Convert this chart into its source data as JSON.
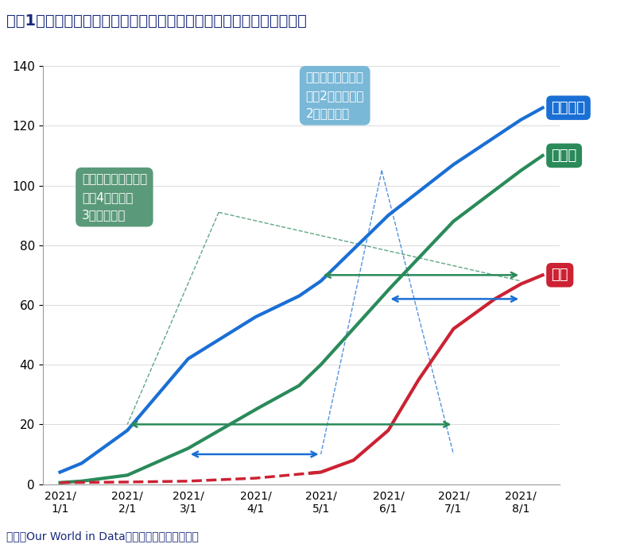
{
  "title": "図表1　ワクチン接種先行国（イギリス、ドイツ）と日本の接種率比較",
  "source_text": "出所：Our World in Dataより野村総合研究所作成",
  "ylim": [
    0,
    140
  ],
  "yticks": [
    0,
    20,
    40,
    60,
    80,
    100,
    120,
    140
  ],
  "xtick_labels": [
    "2021/\n1/1",
    "2021/\n2/1",
    "2021/\n3/1",
    "2021/\n4/1",
    "2021/\n5/1",
    "2021/\n6/1",
    "2021/\n7/1",
    "2021/\n8/1"
  ],
  "uk_color": "#1a6fd4",
  "germany_color": "#2a8a5a",
  "japan_color": "#cc2233",
  "uk_label": "イギリス",
  "germany_label": "ドイツ",
  "japan_label": "日本",
  "title_color": "#1a2a7a",
  "source_color": "#1a2a7a",
  "annotation_box1_color": "#7ab8d8",
  "annotation_box2_color": "#5a9a7a",
  "annotation1_line1": "ドイツとの時間差",
  "annotation1_line2": "当初2ヵ月半から",
  "annotation1_line3": "2ヵ月に短縮",
  "annotation2_line1": "イギリスとの時間差",
  "annotation2_line2": "当初4ヵ月から",
  "annotation2_line3": "3ヵ月に短縮",
  "background_color": "#ffffff",
  "title_fontsize": 14,
  "label_fontsize": 12
}
